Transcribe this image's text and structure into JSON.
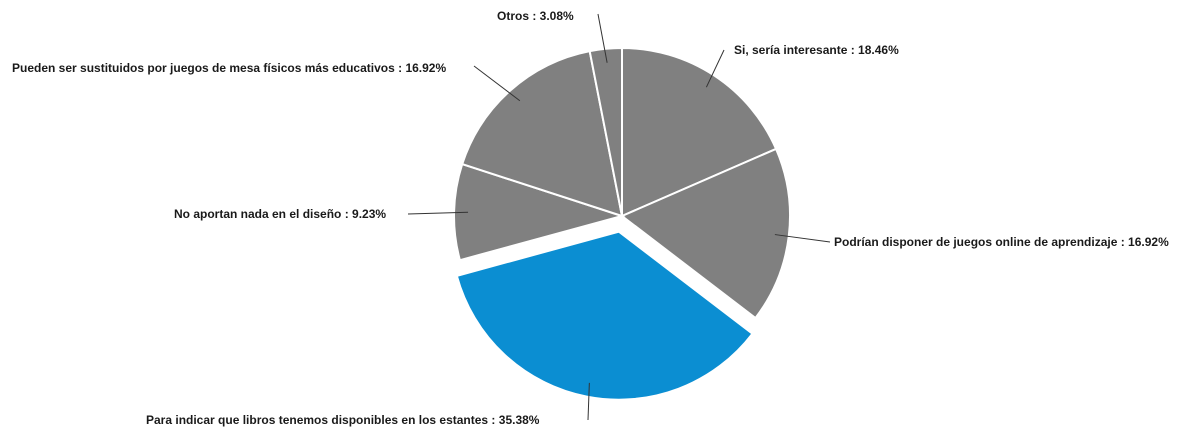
{
  "chart_data": {
    "type": "pie",
    "title": "",
    "slices": [
      {
        "label": "Si, sería interesante",
        "value": 18.46,
        "display": "Si, sería interesante : 18.46%",
        "color": "#808080",
        "exploded": false
      },
      {
        "label": "Podrían disponer de juegos online de aprendizaje",
        "value": 16.92,
        "display": "Podrían disponer de juegos online de aprendizaje : 16.92%",
        "color": "#808080",
        "exploded": false
      },
      {
        "label": "Para indicar que libros tenemos disponibles en los estantes",
        "value": 35.38,
        "display": "Para indicar que libros tenemos disponibles en los estantes : 35.38%",
        "color": "#0B8ED2",
        "exploded": true
      },
      {
        "label": "No aportan nada en el diseño",
        "value": 9.23,
        "display": "No aportan nada en el diseño : 9.23%",
        "color": "#808080",
        "exploded": false
      },
      {
        "label": "Pueden ser sustituidos por juegos de mesa físicos más educativos",
        "value": 16.92,
        "display": "Pueden ser sustituidos por juegos de mesa físicos más educativos : 16.92%",
        "color": "#808080",
        "exploded": false
      },
      {
        "label": "Otros",
        "value": 3.08,
        "display": "Otros  : 3.08%",
        "color": "#808080",
        "exploded": false
      }
    ],
    "legend": "none",
    "edge_color": "#ffffff"
  }
}
